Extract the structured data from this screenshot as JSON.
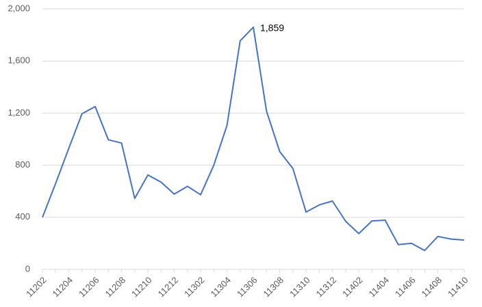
{
  "chart_data": {
    "type": "line",
    "categories": [
      "11202",
      null,
      "11204",
      null,
      "11206",
      null,
      "11208",
      null,
      "11210",
      null,
      "11212",
      null,
      "11302",
      null,
      "11304",
      null,
      "11306",
      null,
      "11308",
      null,
      "11310",
      null,
      "11312",
      null,
      "11402",
      null,
      "11404",
      null,
      "11406",
      null,
      "11408",
      null,
      "11410"
    ],
    "series": [
      {
        "color": "#4472c4",
        "values": [
          400,
          660,
          930,
          1195,
          1250,
          995,
          970,
          545,
          725,
          670,
          578,
          638,
          573,
          800,
          1105,
          1755,
          1859,
          1215,
          905,
          775,
          440,
          495,
          525,
          370,
          275,
          372,
          378,
          190,
          200,
          145,
          253,
          233,
          225
        ],
        "value_labels": [
          null,
          null,
          null,
          null,
          null,
          null,
          null,
          null,
          null,
          null,
          null,
          null,
          null,
          null,
          null,
          null,
          "1,859",
          null,
          null,
          null,
          null,
          null,
          null,
          null,
          null,
          null,
          null,
          null,
          null,
          null,
          null,
          null,
          null
        ]
      }
    ],
    "ylim": [
      0,
      2000
    ],
    "yticks": [
      0,
      400,
      800,
      {
        "value": 1200,
        "label": "1,200"
      },
      {
        "value": 1600,
        "label": "1,600"
      },
      {
        "value": 2000,
        "label": "2,000"
      }
    ],
    "grid": true
  }
}
